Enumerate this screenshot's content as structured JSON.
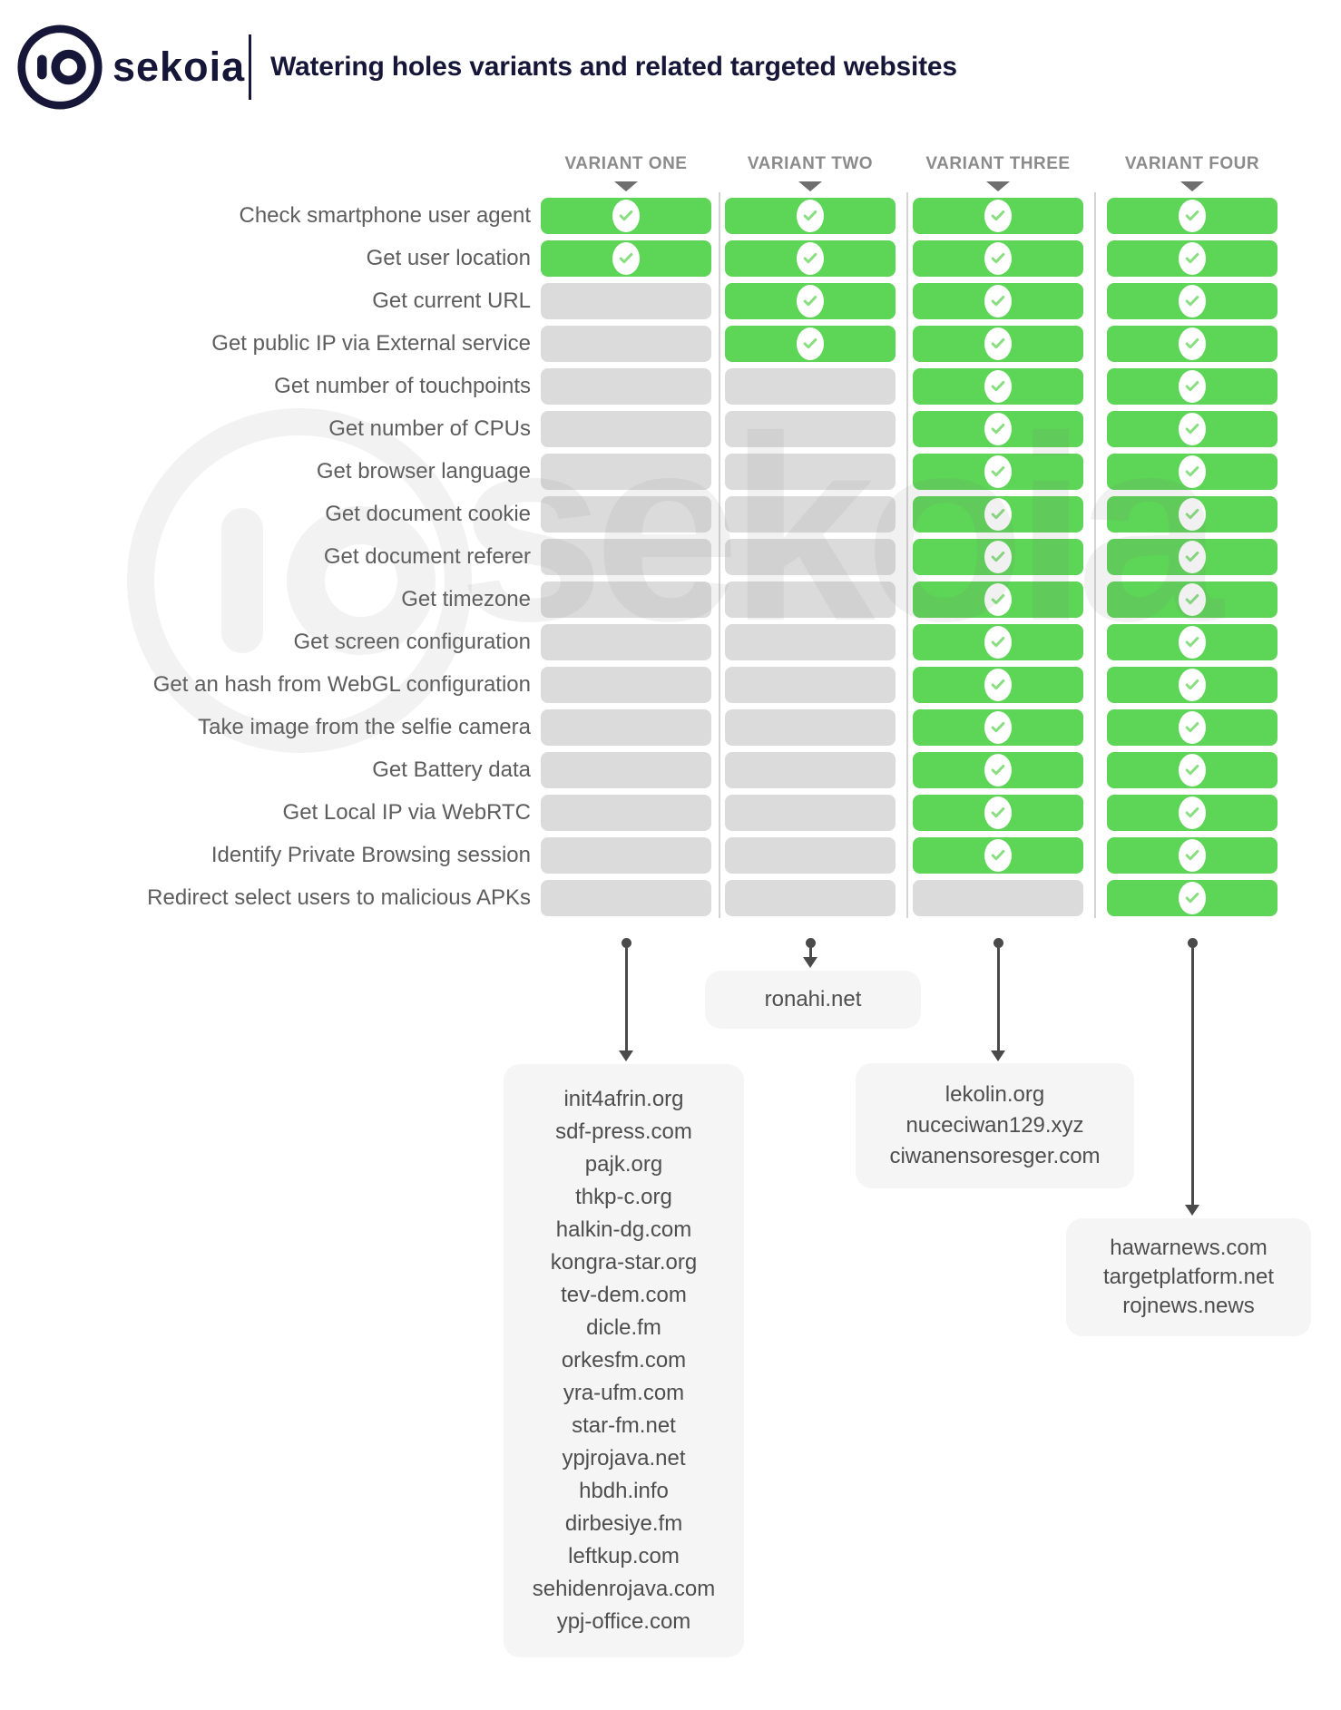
{
  "header": {
    "brand": "sekoia",
    "title": "Watering holes variants and related targeted websites"
  },
  "watermark": {
    "text": "sekoia"
  },
  "matrix": {
    "columns": [
      "VARIANT ONE",
      "VARIANT TWO",
      "VARIANT THREE",
      "VARIANT FOUR"
    ],
    "rows": [
      {
        "label": "Check smartphone user agent",
        "checks": [
          true,
          true,
          true,
          true
        ]
      },
      {
        "label": "Get user location",
        "checks": [
          true,
          true,
          true,
          true
        ]
      },
      {
        "label": "Get current URL",
        "checks": [
          false,
          true,
          true,
          true
        ]
      },
      {
        "label": "Get public IP via External service",
        "checks": [
          false,
          true,
          true,
          true
        ]
      },
      {
        "label": "Get number of touchpoints",
        "checks": [
          false,
          false,
          true,
          true
        ]
      },
      {
        "label": "Get number of CPUs",
        "checks": [
          false,
          false,
          true,
          true
        ]
      },
      {
        "label": "Get browser language",
        "checks": [
          false,
          false,
          true,
          true
        ]
      },
      {
        "label": "Get document cookie",
        "checks": [
          false,
          false,
          true,
          true
        ]
      },
      {
        "label": "Get document referer",
        "checks": [
          false,
          false,
          true,
          true
        ]
      },
      {
        "label": "Get timezone",
        "checks": [
          false,
          false,
          true,
          true
        ]
      },
      {
        "label": "Get screen configuration",
        "checks": [
          false,
          false,
          true,
          true
        ]
      },
      {
        "label": "Get an hash from WebGL configuration",
        "checks": [
          false,
          false,
          true,
          true
        ]
      },
      {
        "label": "Take image from the selfie camera",
        "checks": [
          false,
          false,
          true,
          true
        ]
      },
      {
        "label": "Get Battery data",
        "checks": [
          false,
          false,
          true,
          true
        ]
      },
      {
        "label": "Get Local IP via WebRTC",
        "checks": [
          false,
          false,
          true,
          true
        ]
      },
      {
        "label": "Identify Private Browsing session",
        "checks": [
          false,
          false,
          true,
          true
        ]
      },
      {
        "label": "Redirect select users to malicious APKs",
        "checks": [
          false,
          false,
          false,
          true
        ]
      }
    ]
  },
  "targets": [
    {
      "variant": "VARIANT ONE",
      "sites": [
        "init4afrin.org",
        "sdf-press.com",
        "pajk.org",
        "thkp-c.org",
        "halkin-dg.com",
        "kongra-star.org",
        "tev-dem.com",
        "dicle.fm",
        "orkesfm.com",
        "yra-ufm.com",
        "star-fm.net",
        "ypjrojava.net",
        "hbdh.info",
        "dirbesiye.fm",
        "leftkup.com",
        "sehidenrojava.com",
        "ypj-office.com"
      ]
    },
    {
      "variant": "VARIANT TWO",
      "sites": [
        "ronahi.net"
      ]
    },
    {
      "variant": "VARIANT THREE",
      "sites": [
        "lekolin.org",
        "nuceciwan129.xyz",
        "ciwanensoresger.com"
      ]
    },
    {
      "variant": "VARIANT FOUR",
      "sites": [
        "hawarnews.com",
        "targetplatform.net",
        "rojnews.news"
      ]
    }
  ],
  "colors": {
    "check_green": "#5dd556",
    "check_mark_green": "#8ade82",
    "empty_gray": "#dbdbdb",
    "brand_navy": "#161638",
    "arrow_gray": "#4a4a4a"
  }
}
